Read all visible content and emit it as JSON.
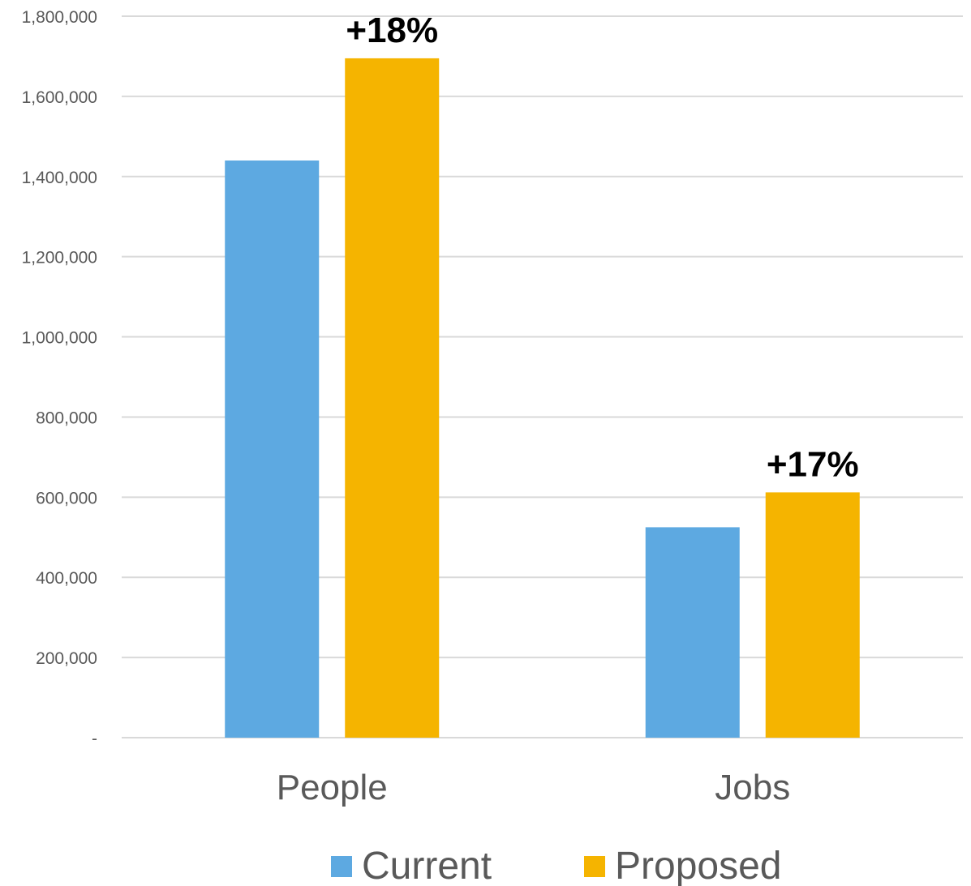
{
  "chart_data": {
    "type": "bar",
    "categories": [
      "People",
      "Jobs"
    ],
    "series": [
      {
        "name": "Current",
        "values": [
          1440000,
          525000
        ],
        "color": "#5DA9E1",
        "data_labels": [
          "",
          ""
        ]
      },
      {
        "name": "Proposed",
        "values": [
          1695000,
          612000
        ],
        "color": "#F5B400",
        "data_labels": [
          "+18%",
          "+17%"
        ]
      }
    ],
    "ylim": [
      0,
      1800000
    ],
    "yticks": [
      0,
      200000,
      400000,
      600000,
      800000,
      1000000,
      1200000,
      1400000,
      1600000,
      1800000
    ],
    "ytick_labels": [
      "-",
      "200,000",
      "400,000",
      "600,000",
      "800,000",
      "1,000,000",
      "1,200,000",
      "1,400,000",
      "1,600,000",
      "1,800,000"
    ],
    "grid": true,
    "legend": {
      "placement": "bottom",
      "items": [
        "Current",
        "Proposed"
      ]
    },
    "title": "",
    "xlabel": "",
    "ylabel": ""
  }
}
